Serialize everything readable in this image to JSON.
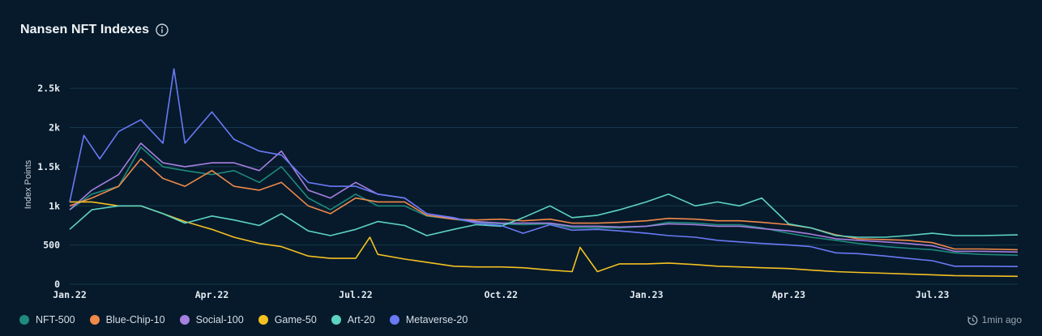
{
  "header": {
    "title": "Nansen NFT Indexes",
    "info_icon": "info-icon"
  },
  "status": {
    "updated": "1min ago",
    "icon": "clock-refresh-icon"
  },
  "colors": {
    "background": "#061a2b",
    "grid": "#16384d",
    "NFT-500": "#1f8a7d",
    "Blue-Chip-10": "#f0894a",
    "Social-100": "#a67fe0",
    "Game-50": "#f5c022",
    "Art-20": "#5dd3c2",
    "Metaverse-20": "#6a79f5"
  },
  "chart_data": {
    "type": "line",
    "title": "Nansen NFT Indexes",
    "xlabel": "",
    "ylabel": "Index Points",
    "ylim": [
      0,
      2750
    ],
    "yticks": [
      0,
      500,
      1000,
      1500,
      2000,
      2500
    ],
    "ytick_labels": [
      "0",
      "500",
      "1k",
      "1.5k",
      "2k",
      "2.5k"
    ],
    "xticks": [
      "2022-01-01",
      "2022-04-01",
      "2022-07-01",
      "2022-10-01",
      "2023-01-01",
      "2023-04-01",
      "2023-07-01"
    ],
    "xtick_labels": [
      "Jan.22",
      "Apr.22",
      "Jul.22",
      "Oct.22",
      "Jan.23",
      "Apr.23",
      "Jul.23"
    ],
    "xrange": [
      "2022-01-01",
      "2023-08-24"
    ],
    "grid": "horizontal",
    "legend_position": "bottom-left",
    "series": [
      {
        "name": "NFT-500",
        "points": [
          [
            "2022-01-01",
            950
          ],
          [
            "2022-01-15",
            1150
          ],
          [
            "2022-02-01",
            1250
          ],
          [
            "2022-02-15",
            1750
          ],
          [
            "2022-03-01",
            1500
          ],
          [
            "2022-03-15",
            1450
          ],
          [
            "2022-04-01",
            1400
          ],
          [
            "2022-04-15",
            1450
          ],
          [
            "2022-05-01",
            1300
          ],
          [
            "2022-05-15",
            1500
          ],
          [
            "2022-06-01",
            1100
          ],
          [
            "2022-06-15",
            950
          ],
          [
            "2022-07-01",
            1150
          ],
          [
            "2022-07-15",
            1000
          ],
          [
            "2022-08-01",
            1000
          ],
          [
            "2022-08-15",
            870
          ],
          [
            "2022-09-01",
            830
          ],
          [
            "2022-09-15",
            790
          ],
          [
            "2022-10-01",
            770
          ],
          [
            "2022-10-15",
            760
          ],
          [
            "2022-11-01",
            770
          ],
          [
            "2022-11-15",
            720
          ],
          [
            "2022-12-01",
            720
          ],
          [
            "2022-12-15",
            720
          ],
          [
            "2023-01-01",
            740
          ],
          [
            "2023-01-15",
            790
          ],
          [
            "2023-02-01",
            780
          ],
          [
            "2023-02-15",
            760
          ],
          [
            "2023-03-01",
            760
          ],
          [
            "2023-03-15",
            720
          ],
          [
            "2023-04-01",
            650
          ],
          [
            "2023-04-15",
            600
          ],
          [
            "2023-05-01",
            560
          ],
          [
            "2023-05-15",
            520
          ],
          [
            "2023-06-01",
            480
          ],
          [
            "2023-06-15",
            460
          ],
          [
            "2023-07-01",
            440
          ],
          [
            "2023-07-15",
            400
          ],
          [
            "2023-08-01",
            380
          ],
          [
            "2023-08-24",
            370
          ]
        ]
      },
      {
        "name": "Blue-Chip-10",
        "points": [
          [
            "2022-01-01",
            1000
          ],
          [
            "2022-01-15",
            1100
          ],
          [
            "2022-02-01",
            1250
          ],
          [
            "2022-02-15",
            1600
          ],
          [
            "2022-03-01",
            1350
          ],
          [
            "2022-03-15",
            1250
          ],
          [
            "2022-04-01",
            1450
          ],
          [
            "2022-04-15",
            1250
          ],
          [
            "2022-05-01",
            1200
          ],
          [
            "2022-05-15",
            1300
          ],
          [
            "2022-06-01",
            1000
          ],
          [
            "2022-06-15",
            900
          ],
          [
            "2022-07-01",
            1100
          ],
          [
            "2022-07-15",
            1050
          ],
          [
            "2022-08-01",
            1050
          ],
          [
            "2022-08-15",
            880
          ],
          [
            "2022-09-01",
            830
          ],
          [
            "2022-09-15",
            820
          ],
          [
            "2022-10-01",
            830
          ],
          [
            "2022-10-15",
            810
          ],
          [
            "2022-11-01",
            830
          ],
          [
            "2022-11-15",
            780
          ],
          [
            "2022-12-01",
            780
          ],
          [
            "2022-12-15",
            790
          ],
          [
            "2023-01-01",
            810
          ],
          [
            "2023-01-15",
            840
          ],
          [
            "2023-02-01",
            830
          ],
          [
            "2023-02-15",
            810
          ],
          [
            "2023-03-01",
            810
          ],
          [
            "2023-03-15",
            790
          ],
          [
            "2023-04-01",
            760
          ],
          [
            "2023-04-15",
            720
          ],
          [
            "2023-05-01",
            630
          ],
          [
            "2023-05-15",
            580
          ],
          [
            "2023-06-01",
            570
          ],
          [
            "2023-06-15",
            560
          ],
          [
            "2023-07-01",
            530
          ],
          [
            "2023-07-15",
            450
          ],
          [
            "2023-08-01",
            450
          ],
          [
            "2023-08-24",
            440
          ]
        ]
      },
      {
        "name": "Social-100",
        "points": [
          [
            "2022-01-01",
            950
          ],
          [
            "2022-01-15",
            1200
          ],
          [
            "2022-02-01",
            1400
          ],
          [
            "2022-02-15",
            1800
          ],
          [
            "2022-03-01",
            1550
          ],
          [
            "2022-03-15",
            1500
          ],
          [
            "2022-04-01",
            1550
          ],
          [
            "2022-04-15",
            1550
          ],
          [
            "2022-05-01",
            1450
          ],
          [
            "2022-05-15",
            1700
          ],
          [
            "2022-06-01",
            1200
          ],
          [
            "2022-06-15",
            1100
          ],
          [
            "2022-07-01",
            1300
          ],
          [
            "2022-07-15",
            1150
          ],
          [
            "2022-08-01",
            1100
          ],
          [
            "2022-08-15",
            900
          ],
          [
            "2022-09-01",
            840
          ],
          [
            "2022-09-15",
            800
          ],
          [
            "2022-10-01",
            780
          ],
          [
            "2022-10-15",
            780
          ],
          [
            "2022-11-01",
            780
          ],
          [
            "2022-11-15",
            740
          ],
          [
            "2022-12-01",
            740
          ],
          [
            "2022-12-15",
            730
          ],
          [
            "2023-01-01",
            740
          ],
          [
            "2023-01-15",
            770
          ],
          [
            "2023-02-01",
            760
          ],
          [
            "2023-02-15",
            740
          ],
          [
            "2023-03-01",
            740
          ],
          [
            "2023-03-15",
            710
          ],
          [
            "2023-04-01",
            680
          ],
          [
            "2023-04-15",
            640
          ],
          [
            "2023-05-01",
            580
          ],
          [
            "2023-05-15",
            560
          ],
          [
            "2023-06-01",
            540
          ],
          [
            "2023-06-15",
            520
          ],
          [
            "2023-07-01",
            490
          ],
          [
            "2023-07-15",
            420
          ],
          [
            "2023-08-01",
            420
          ],
          [
            "2023-08-24",
            410
          ]
        ]
      },
      {
        "name": "Game-50",
        "points": [
          [
            "2022-01-01",
            1050
          ],
          [
            "2022-01-15",
            1050
          ],
          [
            "2022-02-01",
            1000
          ],
          [
            "2022-02-15",
            1000
          ],
          [
            "2022-03-01",
            900
          ],
          [
            "2022-03-15",
            800
          ],
          [
            "2022-04-01",
            700
          ],
          [
            "2022-04-15",
            600
          ],
          [
            "2022-05-01",
            520
          ],
          [
            "2022-05-15",
            480
          ],
          [
            "2022-06-01",
            360
          ],
          [
            "2022-06-15",
            330
          ],
          [
            "2022-07-01",
            330
          ],
          [
            "2022-07-10",
            600
          ],
          [
            "2022-07-15",
            380
          ],
          [
            "2022-08-01",
            320
          ],
          [
            "2022-08-15",
            280
          ],
          [
            "2022-09-01",
            230
          ],
          [
            "2022-09-15",
            220
          ],
          [
            "2022-10-01",
            220
          ],
          [
            "2022-10-15",
            210
          ],
          [
            "2022-11-01",
            180
          ],
          [
            "2022-11-15",
            160
          ],
          [
            "2022-11-20",
            470
          ],
          [
            "2022-12-01",
            160
          ],
          [
            "2022-12-15",
            260
          ],
          [
            "2023-01-01",
            260
          ],
          [
            "2023-01-15",
            270
          ],
          [
            "2023-02-01",
            250
          ],
          [
            "2023-02-15",
            230
          ],
          [
            "2023-03-01",
            220
          ],
          [
            "2023-03-15",
            210
          ],
          [
            "2023-04-01",
            200
          ],
          [
            "2023-04-15",
            180
          ],
          [
            "2023-05-01",
            160
          ],
          [
            "2023-05-15",
            150
          ],
          [
            "2023-06-01",
            140
          ],
          [
            "2023-06-15",
            130
          ],
          [
            "2023-07-01",
            120
          ],
          [
            "2023-07-15",
            110
          ],
          [
            "2023-08-01",
            105
          ],
          [
            "2023-08-24",
            100
          ]
        ]
      },
      {
        "name": "Art-20",
        "points": [
          [
            "2022-01-01",
            700
          ],
          [
            "2022-01-15",
            950
          ],
          [
            "2022-02-01",
            1000
          ],
          [
            "2022-02-15",
            1000
          ],
          [
            "2022-03-01",
            900
          ],
          [
            "2022-03-15",
            780
          ],
          [
            "2022-04-01",
            870
          ],
          [
            "2022-04-15",
            820
          ],
          [
            "2022-05-01",
            750
          ],
          [
            "2022-05-15",
            900
          ],
          [
            "2022-06-01",
            680
          ],
          [
            "2022-06-15",
            620
          ],
          [
            "2022-07-01",
            700
          ],
          [
            "2022-07-15",
            800
          ],
          [
            "2022-08-01",
            750
          ],
          [
            "2022-08-15",
            620
          ],
          [
            "2022-09-01",
            700
          ],
          [
            "2022-09-15",
            760
          ],
          [
            "2022-10-01",
            740
          ],
          [
            "2022-10-15",
            850
          ],
          [
            "2022-11-01",
            1000
          ],
          [
            "2022-11-15",
            850
          ],
          [
            "2022-12-01",
            880
          ],
          [
            "2022-12-15",
            950
          ],
          [
            "2023-01-01",
            1050
          ],
          [
            "2023-01-15",
            1150
          ],
          [
            "2023-02-01",
            1000
          ],
          [
            "2023-02-15",
            1050
          ],
          [
            "2023-03-01",
            1000
          ],
          [
            "2023-03-15",
            1100
          ],
          [
            "2023-04-01",
            770
          ],
          [
            "2023-04-15",
            720
          ],
          [
            "2023-05-01",
            620
          ],
          [
            "2023-05-15",
            600
          ],
          [
            "2023-06-01",
            600
          ],
          [
            "2023-06-15",
            620
          ],
          [
            "2023-07-01",
            650
          ],
          [
            "2023-07-15",
            620
          ],
          [
            "2023-08-01",
            620
          ],
          [
            "2023-08-24",
            630
          ]
        ]
      },
      {
        "name": "Metaverse-20",
        "points": [
          [
            "2022-01-01",
            1050
          ],
          [
            "2022-01-10",
            1900
          ],
          [
            "2022-01-20",
            1600
          ],
          [
            "2022-02-01",
            1950
          ],
          [
            "2022-02-15",
            2100
          ],
          [
            "2022-03-01",
            1800
          ],
          [
            "2022-03-08",
            2750
          ],
          [
            "2022-03-15",
            1800
          ],
          [
            "2022-04-01",
            2200
          ],
          [
            "2022-04-15",
            1850
          ],
          [
            "2022-05-01",
            1700
          ],
          [
            "2022-05-15",
            1650
          ],
          [
            "2022-06-01",
            1300
          ],
          [
            "2022-06-15",
            1250
          ],
          [
            "2022-07-01",
            1250
          ],
          [
            "2022-07-15",
            1150
          ],
          [
            "2022-08-01",
            1100
          ],
          [
            "2022-08-15",
            900
          ],
          [
            "2022-09-01",
            850
          ],
          [
            "2022-09-15",
            780
          ],
          [
            "2022-10-01",
            750
          ],
          [
            "2022-10-15",
            650
          ],
          [
            "2022-11-01",
            760
          ],
          [
            "2022-11-15",
            690
          ],
          [
            "2022-12-01",
            700
          ],
          [
            "2022-12-15",
            680
          ],
          [
            "2023-01-01",
            650
          ],
          [
            "2023-01-15",
            620
          ],
          [
            "2023-02-01",
            600
          ],
          [
            "2023-02-15",
            560
          ],
          [
            "2023-03-01",
            540
          ],
          [
            "2023-03-15",
            520
          ],
          [
            "2023-04-01",
            500
          ],
          [
            "2023-04-15",
            480
          ],
          [
            "2023-05-01",
            400
          ],
          [
            "2023-05-15",
            390
          ],
          [
            "2023-06-01",
            360
          ],
          [
            "2023-06-15",
            330
          ],
          [
            "2023-07-01",
            300
          ],
          [
            "2023-07-15",
            230
          ],
          [
            "2023-08-01",
            230
          ],
          [
            "2023-08-24",
            225
          ]
        ]
      }
    ]
  }
}
